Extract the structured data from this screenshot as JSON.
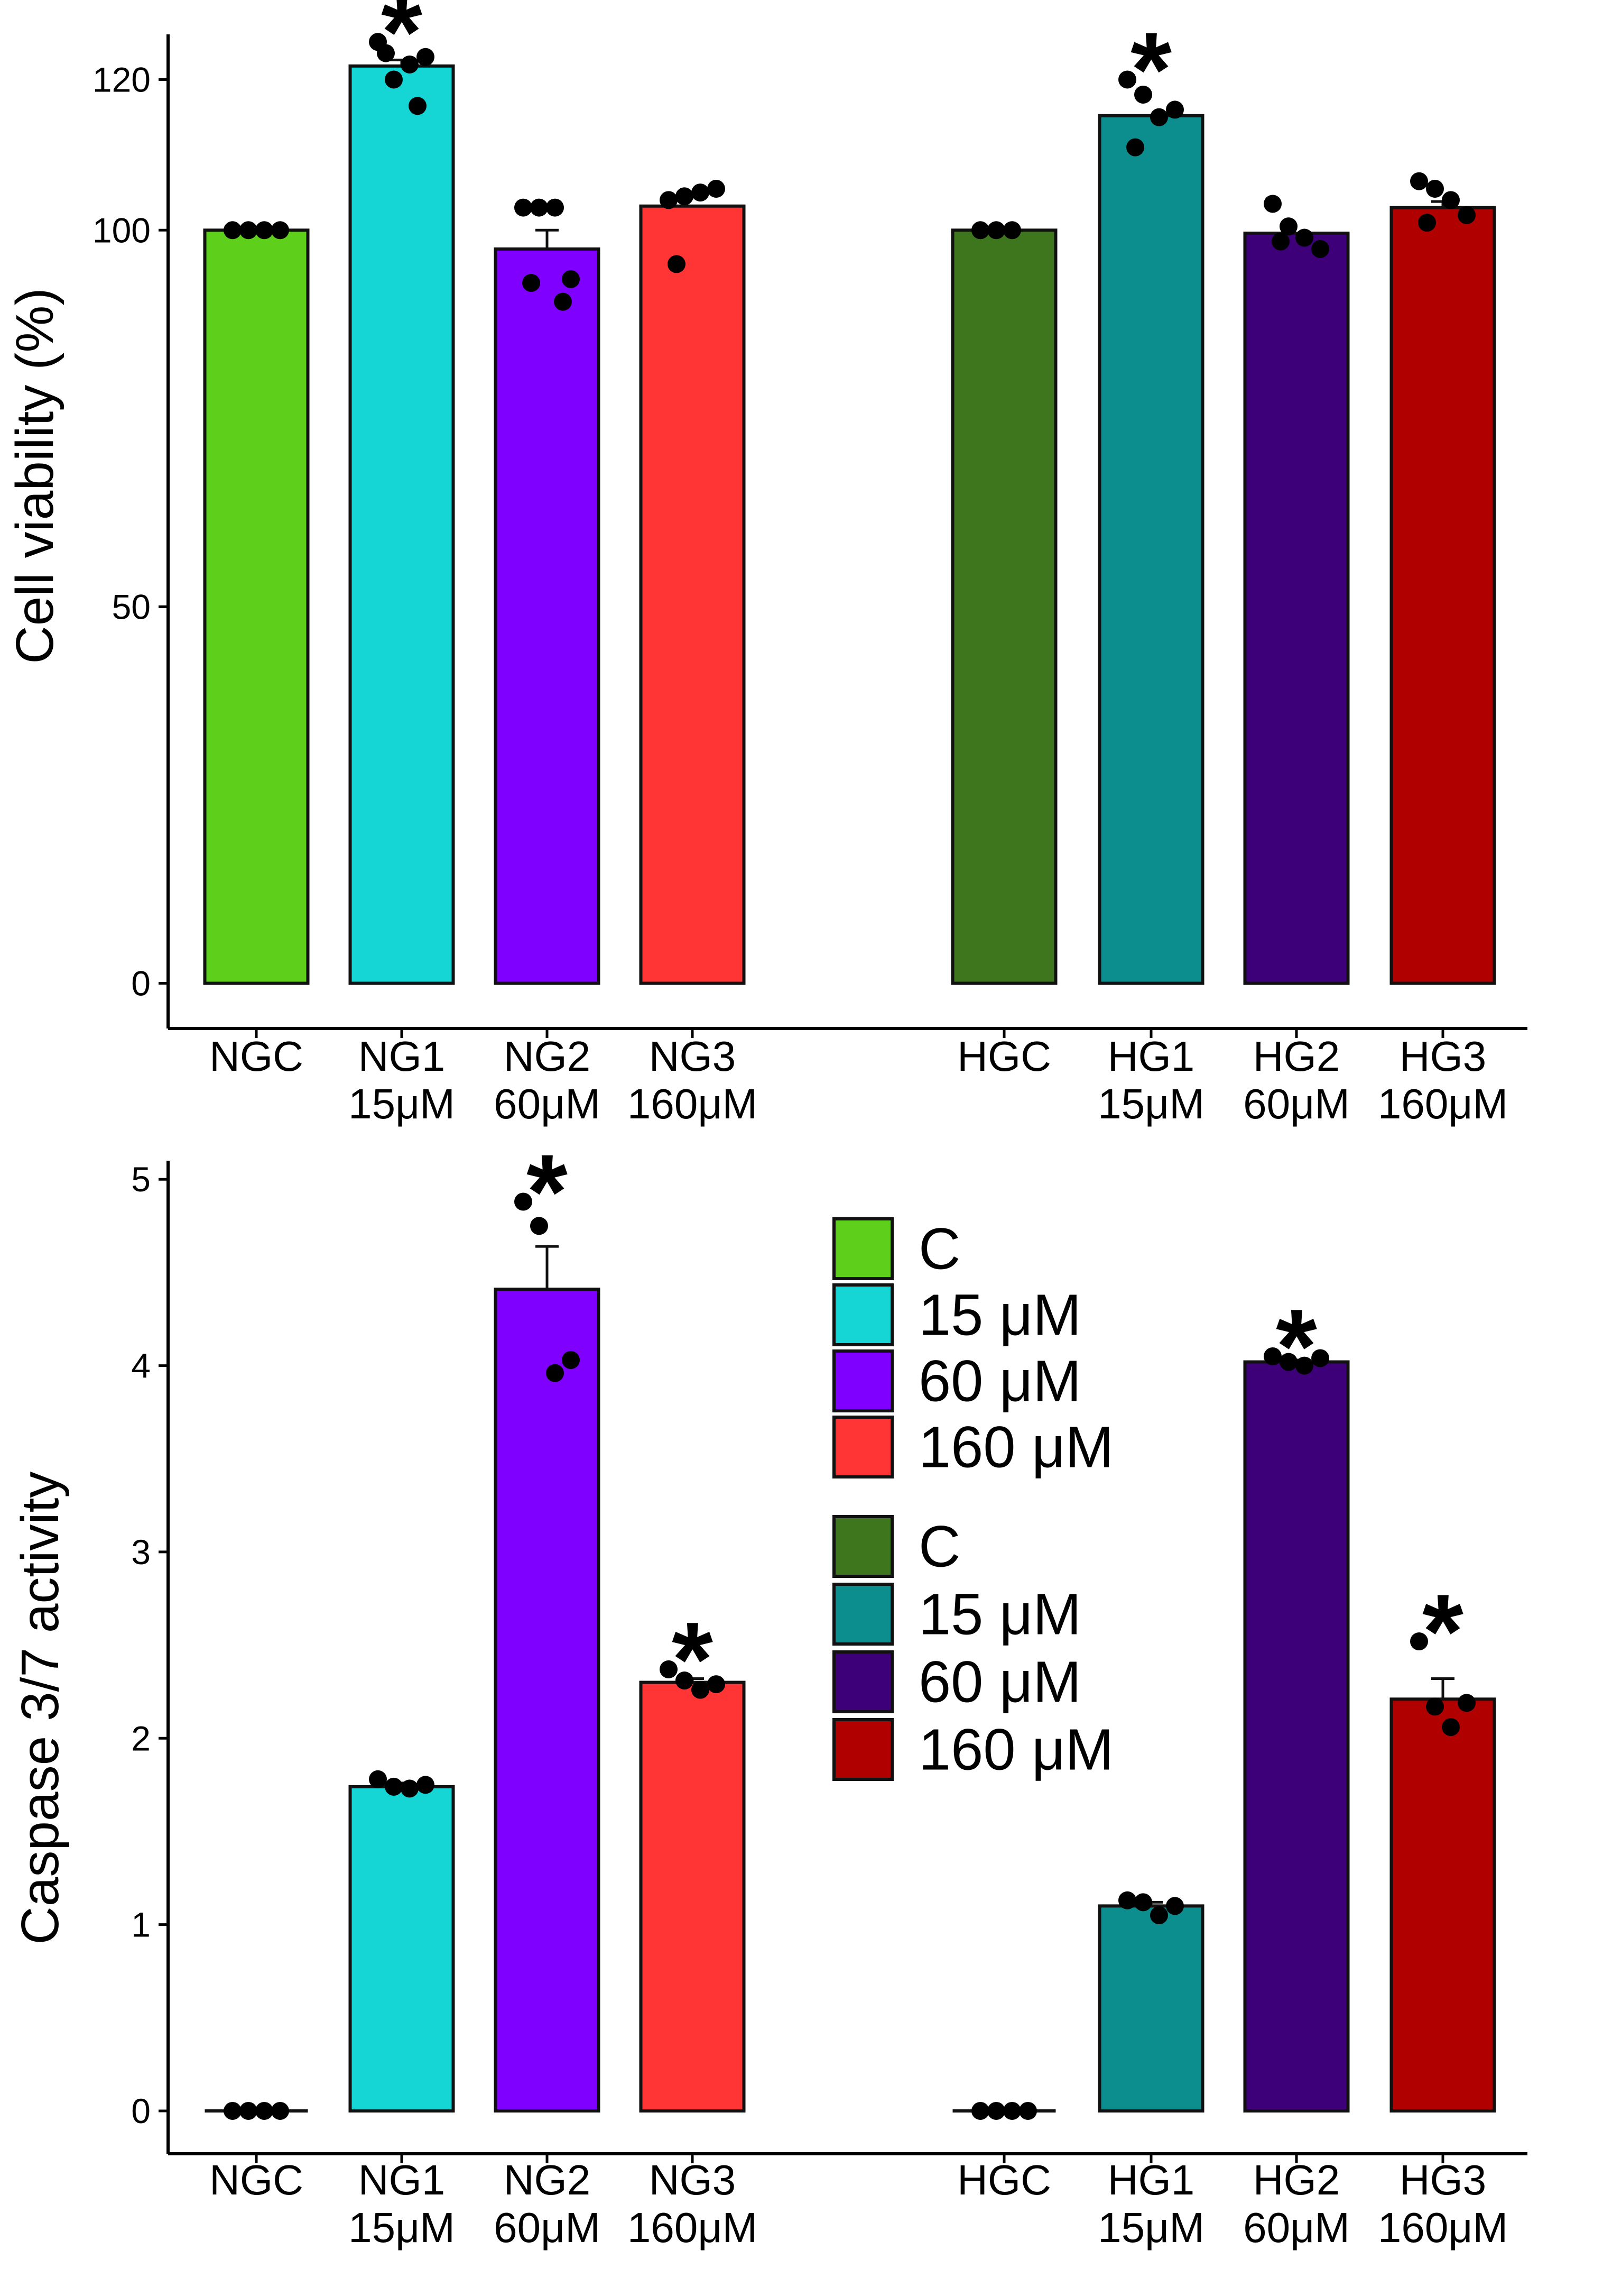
{
  "colors": {
    "NGC": "#5ecf1a",
    "NG1": "#15d5d5",
    "NG2": "#8000ff",
    "NG3": "#ff3535",
    "HGC": "#3e761d",
    "HG1": "#0c8e8e",
    "HG2": "#3e0078",
    "HG3": "#b10000"
  },
  "chart_data": [
    {
      "type": "bar",
      "ylabel": "Cell viability (%)",
      "ylim": [
        -6,
        126
      ],
      "yticks": [
        "0",
        "50",
        "100",
        "120"
      ],
      "ytick_values": [
        0,
        50,
        100,
        120
      ],
      "bars": [
        {
          "key": "NGC",
          "label": "NGC",
          "sublabel": "",
          "value": 100.0,
          "error": 0.0,
          "points": [
            100,
            100,
            100,
            100
          ],
          "star": false
        },
        {
          "key": "NG1",
          "label": "NG1",
          "sublabel": "15μM",
          "value": 121.8,
          "error": 0.8,
          "points": [
            125,
            120,
            122,
            123,
            123.5,
            116.5
          ],
          "star": true
        },
        {
          "key": "NG2",
          "label": "NG2",
          "sublabel": "60μM",
          "value": 97.5,
          "error": 2.5,
          "points": [
            103,
            103,
            103,
            93.5,
            93,
            90.5
          ],
          "star": false
        },
        {
          "key": "NG3",
          "label": "NG3",
          "sublabel": "160μM",
          "value": 103.2,
          "error": 0.0,
          "points": [
            104,
            104.5,
            105,
            105.5,
            95.5
          ],
          "star": false
        },
        {
          "key": "HGC",
          "label": "HGC",
          "sublabel": "",
          "value": 100.0,
          "error": 0.0,
          "points": [
            100,
            100,
            100
          ],
          "star": false
        },
        {
          "key": "HG1",
          "label": "HG1",
          "sublabel": "15μM",
          "value": 115.2,
          "error": 0.0,
          "points": [
            120,
            118,
            115,
            116,
            111
          ],
          "star": true
        },
        {
          "key": "HG2",
          "label": "HG2",
          "sublabel": "60μM",
          "value": 99.6,
          "error": 0.0,
          "points": [
            103.5,
            100.5,
            99,
            97.5,
            98.5
          ],
          "star": false
        },
        {
          "key": "HG3",
          "label": "HG3",
          "sublabel": "160μM",
          "value": 103.0,
          "error": 0.8,
          "points": [
            106.5,
            105.5,
            104,
            102,
            101
          ],
          "star": false
        }
      ]
    },
    {
      "type": "bar",
      "ylabel": "Caspase 3/7 activity",
      "ylim": [
        -0.23,
        5.1
      ],
      "yticks": [
        "0",
        "1",
        "2",
        "3",
        "4",
        "5"
      ],
      "ytick_values": [
        0,
        1,
        2,
        3,
        4,
        5
      ],
      "bars": [
        {
          "key": "NGC",
          "label": "NGC",
          "sublabel": "",
          "value": 0.0,
          "error": 0.0,
          "points": [
            0,
            0,
            0,
            0
          ],
          "star": false
        },
        {
          "key": "NG1",
          "label": "NG1",
          "sublabel": "15μM",
          "value": 1.74,
          "error": 0.02,
          "points": [
            1.78,
            1.74,
            1.73,
            1.75
          ],
          "star": false
        },
        {
          "key": "NG2",
          "label": "NG2",
          "sublabel": "60μM",
          "value": 4.41,
          "error": 0.23,
          "points": [
            4.88,
            4.75,
            3.96,
            4.03
          ],
          "star": true
        },
        {
          "key": "NG3",
          "label": "NG3",
          "sublabel": "160μM",
          "value": 2.3,
          "error": 0.02,
          "points": [
            2.37,
            2.31,
            2.26,
            2.29
          ],
          "star": true
        },
        {
          "key": "HGC",
          "label": "HGC",
          "sublabel": "",
          "value": 0.0,
          "error": 0.0,
          "points": [
            0,
            0,
            0,
            0
          ],
          "star": false
        },
        {
          "key": "HG1",
          "label": "HG1",
          "sublabel": "15μM",
          "value": 1.1,
          "error": 0.02,
          "points": [
            1.13,
            1.12,
            1.05,
            1.1
          ],
          "star": false
        },
        {
          "key": "HG2",
          "label": "HG2",
          "sublabel": "60μM",
          "value": 4.02,
          "error": 0.01,
          "points": [
            4.05,
            4.02,
            4.0,
            4.04
          ],
          "star": true
        },
        {
          "key": "HG3",
          "label": "HG3",
          "sublabel": "160μM",
          "value": 2.21,
          "error": 0.11,
          "points": [
            2.52,
            2.17,
            2.06,
            2.19
          ],
          "star": true
        }
      ]
    }
  ],
  "legend": {
    "group1": [
      {
        "key": "NGC",
        "label": "C"
      },
      {
        "key": "NG1",
        "label": "15 μM"
      },
      {
        "key": "NG2",
        "label": "60 μM"
      },
      {
        "key": "NG3",
        "label": "160 μM"
      }
    ],
    "group2": [
      {
        "key": "HGC",
        "label": "C"
      },
      {
        "key": "HG1",
        "label": "15 μM"
      },
      {
        "key": "HG2",
        "label": "60 μM"
      },
      {
        "key": "HG3",
        "label": "160 μM"
      }
    ]
  },
  "significance_marker": "*"
}
